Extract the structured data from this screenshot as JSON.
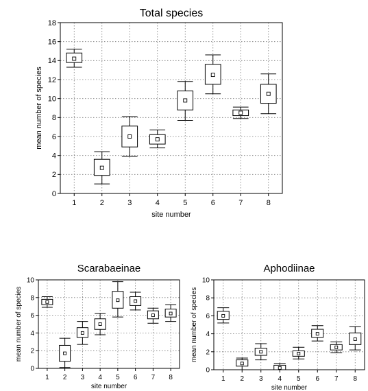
{
  "chart_data": [
    {
      "type": "box",
      "title": "Total species",
      "xlabel": "site number",
      "ylabel": "mean number of species",
      "categories": [
        "1",
        "2",
        "3",
        "4",
        "5",
        "6",
        "7",
        "8"
      ],
      "ylim": [
        0,
        18
      ],
      "yticks": [
        0,
        2,
        4,
        6,
        8,
        10,
        12,
        14,
        16,
        18
      ],
      "grid": true,
      "boxes": [
        {
          "mean": 14.2,
          "q1": 13.8,
          "q3": 14.8,
          "min": 13.3,
          "max": 15.2
        },
        {
          "mean": 2.7,
          "q1": 1.9,
          "q3": 3.6,
          "min": 1.0,
          "max": 4.4
        },
        {
          "mean": 6.0,
          "q1": 4.9,
          "q3": 7.1,
          "min": 3.9,
          "max": 8.1
        },
        {
          "mean": 5.7,
          "q1": 5.2,
          "q3": 6.2,
          "min": 4.8,
          "max": 6.7
        },
        {
          "mean": 9.8,
          "q1": 8.8,
          "q3": 10.8,
          "min": 7.7,
          "max": 11.8
        },
        {
          "mean": 12.5,
          "q1": 11.5,
          "q3": 13.6,
          "min": 10.5,
          "max": 14.6
        },
        {
          "mean": 8.5,
          "q1": 8.2,
          "q3": 8.8,
          "min": 7.9,
          "max": 9.1
        },
        {
          "mean": 10.5,
          "q1": 9.5,
          "q3": 11.5,
          "min": 8.4,
          "max": 12.6
        }
      ]
    },
    {
      "type": "box",
      "title": "Scarabaeinae",
      "xlabel": "site number",
      "ylabel": "mean number of species",
      "categories": [
        "1",
        "2",
        "3",
        "4",
        "5",
        "6",
        "7",
        "8"
      ],
      "ylim": [
        0,
        10
      ],
      "yticks": [
        0,
        2,
        4,
        6,
        8,
        10
      ],
      "grid": true,
      "boxes": [
        {
          "mean": 7.5,
          "q1": 7.2,
          "q3": 7.8,
          "min": 6.9,
          "max": 8.1
        },
        {
          "mean": 1.7,
          "q1": 0.8,
          "q3": 2.6,
          "min": 0.1,
          "max": 3.4
        },
        {
          "mean": 4.0,
          "q1": 3.5,
          "q3": 4.6,
          "min": 2.7,
          "max": 5.3
        },
        {
          "mean": 5.0,
          "q1": 4.4,
          "q3": 5.6,
          "min": 3.8,
          "max": 6.2
        },
        {
          "mean": 7.7,
          "q1": 6.8,
          "q3": 8.7,
          "min": 5.8,
          "max": 9.8
        },
        {
          "mean": 7.6,
          "q1": 7.1,
          "q3": 8.1,
          "min": 6.6,
          "max": 8.6
        },
        {
          "mean": 6.0,
          "q1": 5.6,
          "q3": 6.5,
          "min": 5.1,
          "max": 6.8
        },
        {
          "mean": 6.2,
          "q1": 5.8,
          "q3": 6.7,
          "min": 5.3,
          "max": 7.2
        }
      ]
    },
    {
      "type": "box",
      "title": "Aphodiinae",
      "xlabel": "site number",
      "ylabel": "mean number of species",
      "categories": [
        "1",
        "2",
        "3",
        "4",
        "5",
        "6",
        "7",
        "8"
      ],
      "ylim": [
        0,
        10
      ],
      "yticks": [
        0,
        2,
        4,
        6,
        8,
        10
      ],
      "grid": true,
      "boxes": [
        {
          "mean": 6.0,
          "q1": 5.6,
          "q3": 6.5,
          "min": 5.2,
          "max": 6.9
        },
        {
          "mean": 0.7,
          "q1": 0.4,
          "q3": 1.1,
          "min": 0.0,
          "max": 1.3
        },
        {
          "mean": 2.0,
          "q1": 1.6,
          "q3": 2.4,
          "min": 1.1,
          "max": 2.9
        },
        {
          "mean": 0.2,
          "q1": 0.0,
          "q3": 0.5,
          "min": 0.0,
          "max": 0.7
        },
        {
          "mean": 1.8,
          "q1": 1.5,
          "q3": 2.1,
          "min": 1.2,
          "max": 2.5
        },
        {
          "mean": 4.0,
          "q1": 3.6,
          "q3": 4.5,
          "min": 3.2,
          "max": 4.9
        },
        {
          "mean": 2.5,
          "q1": 2.2,
          "q3": 2.8,
          "min": 1.9,
          "max": 3.1
        },
        {
          "mean": 3.4,
          "q1": 2.8,
          "q3": 4.1,
          "min": 2.2,
          "max": 4.8
        }
      ]
    }
  ]
}
